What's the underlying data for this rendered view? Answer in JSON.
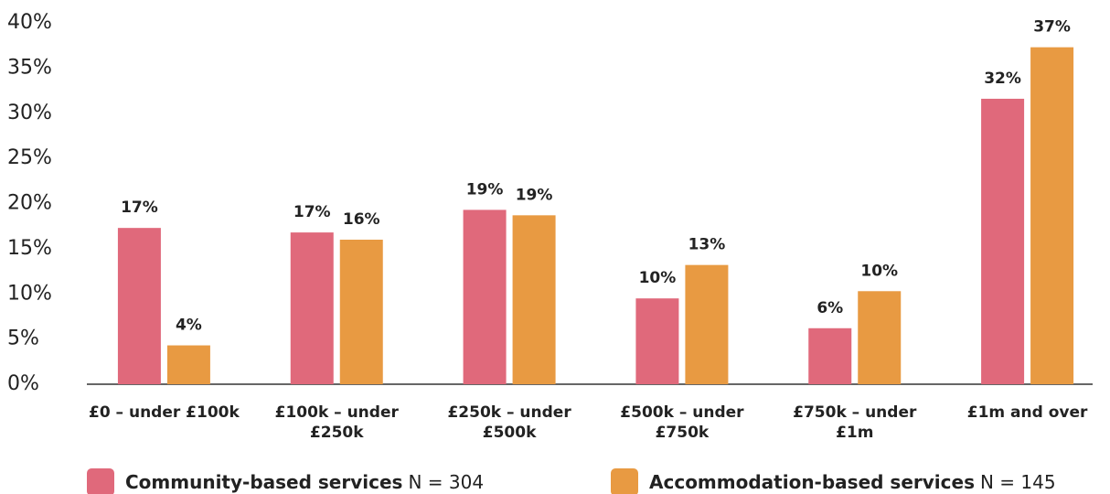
{
  "chart_data": {
    "type": "bar",
    "categories": [
      "£0 – under £100k",
      "£100k – under £250k",
      "£250k – under £500k",
      "£500k – under £750k",
      "£750k – under £1m",
      "£1m and over"
    ],
    "series": [
      {
        "name": "Community-based services",
        "note": "N = 304",
        "color": "#e0697b",
        "values": [
          17.3,
          16.8,
          19.3,
          9.5,
          6.2,
          31.6
        ],
        "value_labels": [
          "17%",
          "17%",
          "19%",
          "10%",
          "6%",
          "32%"
        ]
      },
      {
        "name": "Accommodation-based services",
        "note": "N = 145",
        "color": "#e89a42",
        "values": [
          4.3,
          16,
          18.7,
          13.2,
          10.3,
          37.3
        ],
        "value_labels": [
          "4%",
          "16%",
          "19%",
          "13%",
          "10%",
          "37%"
        ]
      }
    ],
    "ylim": [
      0,
      40
    ],
    "yticks": [
      {
        "value": 0,
        "label": "0%"
      },
      {
        "value": 5,
        "label": "5%"
      },
      {
        "value": 10,
        "label": "10%"
      },
      {
        "value": 15,
        "label": "15%"
      },
      {
        "value": 20,
        "label": "20%"
      },
      {
        "value": 25,
        "label": "25%"
      },
      {
        "value": 30,
        "label": "30%"
      },
      {
        "value": 35,
        "label": "35%"
      },
      {
        "value": 40,
        "label": "40%"
      }
    ],
    "grid": false
  }
}
